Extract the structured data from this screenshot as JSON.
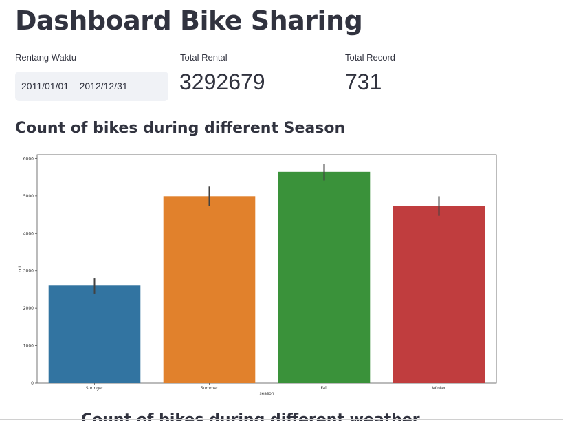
{
  "page": {
    "title": "Dashboard Bike Sharing",
    "next_heading": "Count of bikes during different weather"
  },
  "metrics": {
    "date_range": {
      "label": "Rentang Waktu",
      "value": "2011/01/01 – 2012/12/31"
    },
    "total_rental": {
      "label": "Total Rental",
      "value": "3292679"
    },
    "total_record": {
      "label": "Total Record",
      "value": "731"
    }
  },
  "section": {
    "title": "Count of bikes during different Season"
  },
  "chart_data": {
    "type": "bar",
    "title": "",
    "xlabel": "season",
    "ylabel": "cnt",
    "categories": [
      "Springer",
      "Summer",
      "Fall",
      "Winter"
    ],
    "values": [
      2604,
      4992,
      5644,
      4728
    ],
    "error_low": [
      2390,
      4740,
      5410,
      4470
    ],
    "error_high": [
      2810,
      5250,
      5860,
      4990
    ],
    "colors": [
      "#3274a1",
      "#e1812c",
      "#3a923a",
      "#c03d3e"
    ],
    "ylim": [
      0,
      6100
    ],
    "yticks": [
      0,
      1000,
      2000,
      3000,
      4000,
      5000,
      6000
    ],
    "grid": false,
    "legend": "none"
  }
}
